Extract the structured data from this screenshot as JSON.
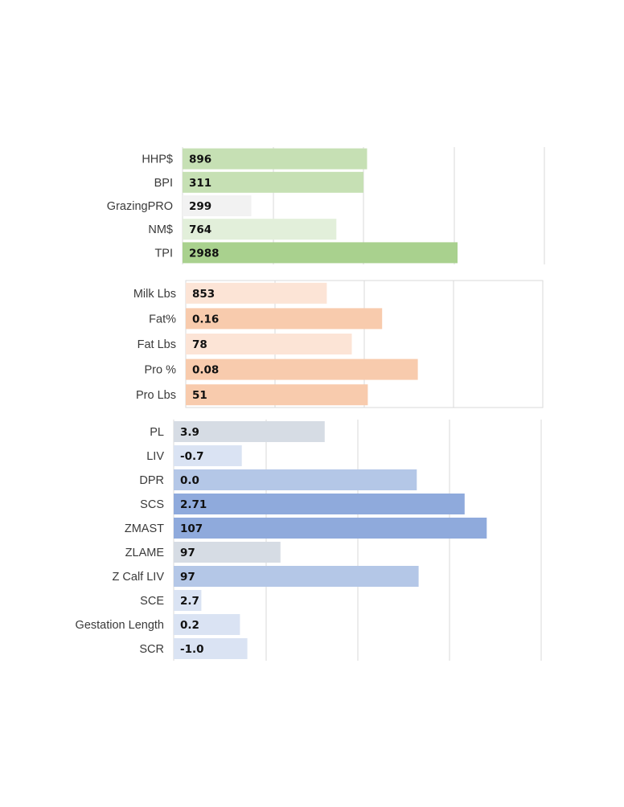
{
  "chart_data": [
    {
      "type": "bar",
      "orientation": "horizontal",
      "title": "",
      "xlabel": "",
      "ylabel": "",
      "categories": [
        "HHP$",
        "BPI",
        "GrazingPRO",
        "NM$",
        "TPI"
      ],
      "value_labels": [
        "896",
        "311",
        "299",
        "764",
        "2988"
      ],
      "values": [
        0.51,
        0.5,
        0.19,
        0.425,
        0.76
      ],
      "colors": [
        "#c6e0b4",
        "#c6e0b4",
        "#f2f2f2",
        "#e2efda",
        "#a9d18e"
      ],
      "grid": true
    },
    {
      "type": "bar",
      "orientation": "horizontal",
      "title": "",
      "xlabel": "",
      "ylabel": "",
      "categories": [
        "Milk Lbs",
        "Fat%",
        "Fat Lbs",
        "Pro %",
        "Pro Lbs"
      ],
      "value_labels": [
        "853",
        "0.16",
        "78",
        "0.08",
        "51"
      ],
      "values": [
        0.395,
        0.55,
        0.465,
        0.65,
        0.51
      ],
      "colors": [
        "#fce4d6",
        "#f8cbad",
        "#fce4d6",
        "#f8cbad",
        "#f8cbad"
      ],
      "grid": true,
      "frame": true
    },
    {
      "type": "bar",
      "orientation": "horizontal",
      "title": "",
      "xlabel": "",
      "ylabel": "",
      "categories": [
        "PL",
        "LIV",
        "DPR",
        "SCS",
        "ZMAST",
        "ZLAME",
        "Z Calf LIV",
        "SCE",
        "Gestation Length",
        "SCR"
      ],
      "value_labels": [
        "3.9",
        "-0.7",
        "0.0",
        "2.71",
        "107",
        "97",
        "97",
        "2.7",
        "0.2",
        "-1.0"
      ],
      "values": [
        0.41,
        0.185,
        0.66,
        0.79,
        0.85,
        0.29,
        0.665,
        0.075,
        0.18,
        0.2
      ],
      "colors": [
        "#d6dce4",
        "#dae3f3",
        "#b4c7e7",
        "#8faadc",
        "#8faadc",
        "#d6dce4",
        "#b4c7e7",
        "#dae3f3",
        "#dae3f3",
        "#dae3f3"
      ],
      "grid": true
    }
  ]
}
